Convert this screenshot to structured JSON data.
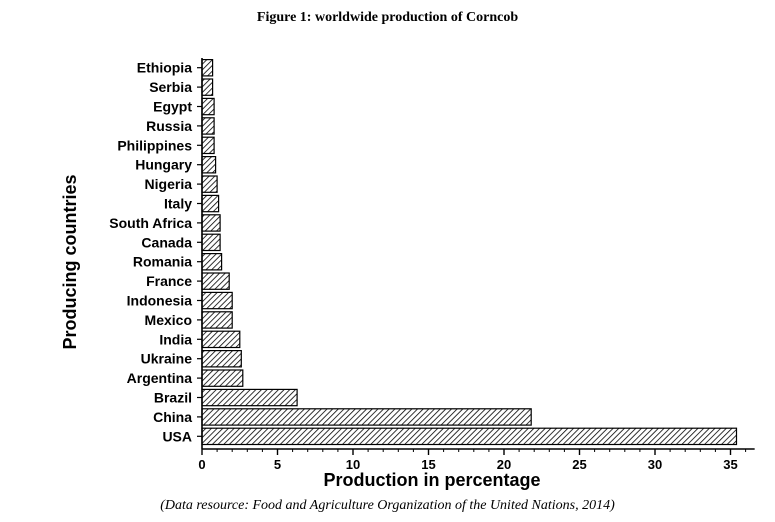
{
  "figure": {
    "title": "Figure 1: worldwide production of Corncob",
    "caption": "(Data resource: Food and Agriculture Organization of the United Nations, 2014)"
  },
  "colors": {
    "ink": "#000000",
    "bar_fill": "#ffffff",
    "hatch": "#000000"
  },
  "chart_data": {
    "type": "bar",
    "orientation": "horizontal",
    "bar_pattern": "diagonal-hatch",
    "categories": [
      "USA",
      "China",
      "Brazil",
      "Argentina",
      "Ukraine",
      "India",
      "Mexico",
      "Indonesia",
      "France",
      "Romania",
      "Canada",
      "South Africa",
      "Italy",
      "Nigeria",
      "Hungary",
      "Philippines",
      "Russia",
      "Egypt",
      "Serbia",
      "Ethiopia"
    ],
    "values": [
      35.4,
      21.8,
      6.3,
      2.7,
      2.6,
      2.5,
      2.0,
      2.0,
      1.8,
      1.3,
      1.2,
      1.2,
      1.1,
      1.0,
      0.9,
      0.8,
      0.8,
      0.8,
      0.7,
      0.7
    ],
    "xlabel": "Production in percentage",
    "ylabel": "Producing countries",
    "xlim": [
      0,
      36
    ],
    "xticks": [
      0,
      5,
      10,
      15,
      20,
      25,
      30,
      35
    ],
    "grid": false
  }
}
